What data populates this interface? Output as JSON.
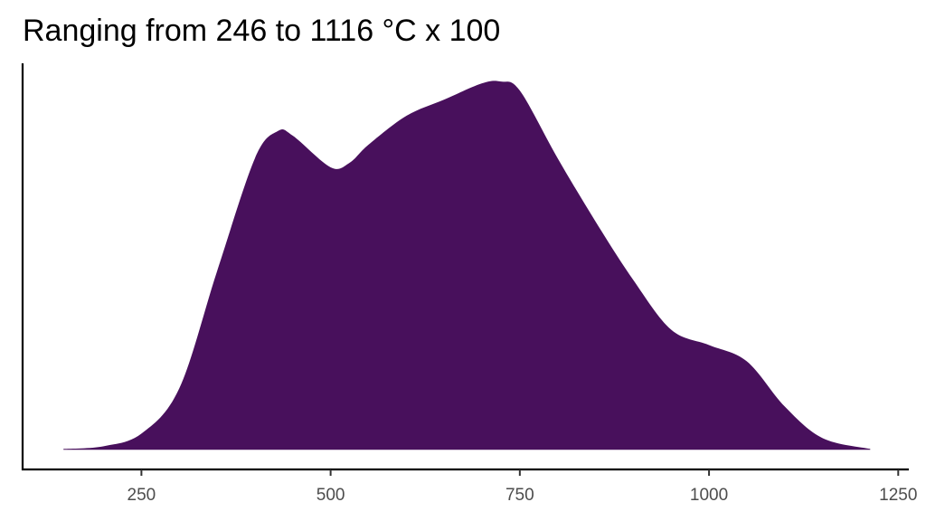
{
  "chart_data": {
    "type": "area",
    "title": "Ranging from 246 to 1116 °C x 100",
    "x": [
      147,
      200,
      250,
      300,
      350,
      400,
      430,
      450,
      500,
      525,
      550,
      600,
      650,
      700,
      725,
      750,
      800,
      850,
      900,
      950,
      1000,
      1050,
      1100,
      1150,
      1213
    ],
    "values": [
      4.6e-06,
      1.84e-05,
      8.28e-05,
      0.000313,
      0.000911,
      0.001486,
      0.001624,
      0.001601,
      0.00144,
      0.001463,
      0.001555,
      0.001702,
      0.001785,
      0.001868,
      0.001877,
      0.001831,
      0.001486,
      0.001164,
      0.000865,
      0.000612,
      0.000534,
      0.000451,
      0.000221,
      5.98e-05,
      4.6e-06
    ],
    "color": "#48105c",
    "xlim": [
      93,
      1264
    ],
    "ylim": [
      -0.0001,
      0.00197
    ],
    "xticks": [
      250,
      500,
      750,
      1000,
      1250
    ]
  }
}
